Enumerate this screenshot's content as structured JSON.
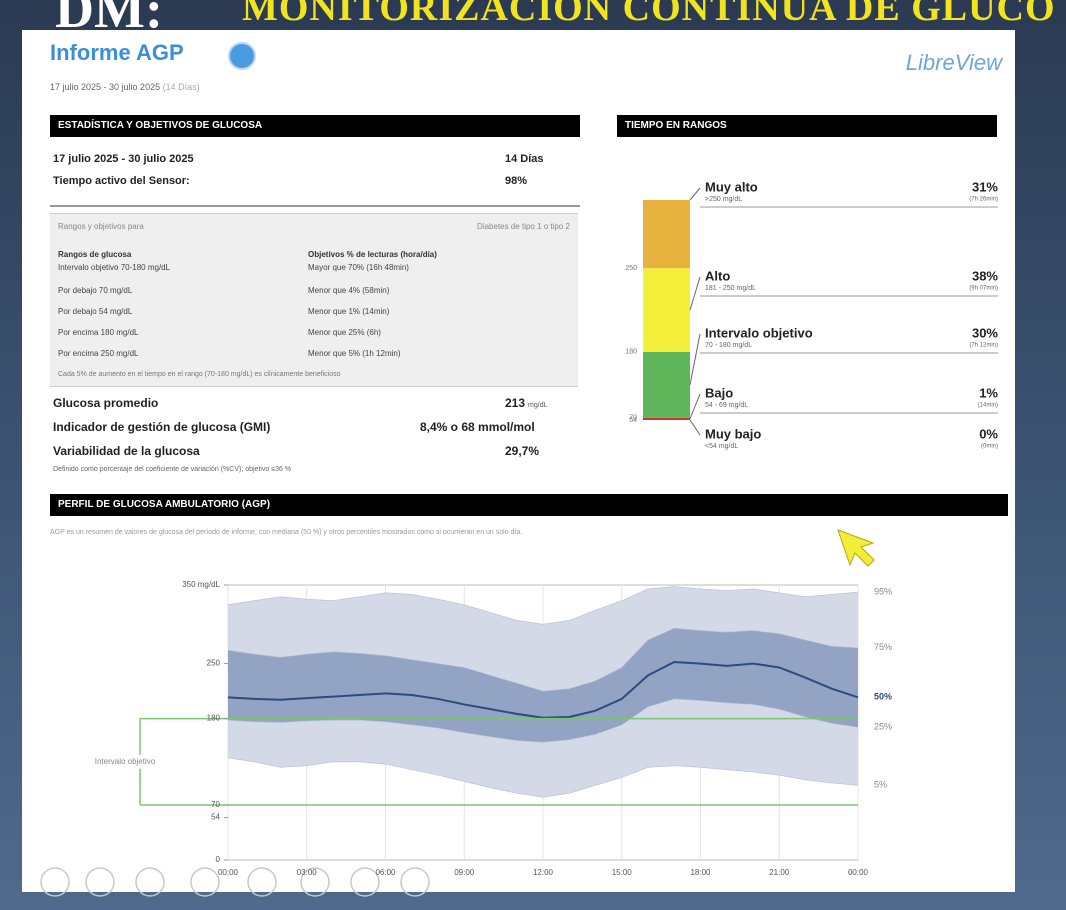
{
  "slide": {
    "title_prefix": "DM:",
    "title": "MONITORIZACIÓN CONTINUA DE GLUCO"
  },
  "header": {
    "title": "Informe AGP",
    "brand": "LibreView",
    "period": "17 julio 2025 - 30 julio 2025",
    "days": "(14 Días)"
  },
  "stats": {
    "heading": "ESTADÍSTICA Y OBJETIVOS DE GLUCOSA",
    "rows": [
      [
        "17 julio 2025 - 30 julio 2025",
        "14 Días"
      ],
      [
        "Tiempo activo del Sensor:",
        "98%"
      ]
    ],
    "targets": {
      "title": "Rangos y objetivos para",
      "population": "Diabetes de tipo 1 o tipo 2",
      "columns": [
        "Rangos de glucosa",
        "Objetivos % de lecturas (hora/día)"
      ],
      "rows": [
        [
          "Intervalo objetivo 70-180 mg/dL",
          "Mayor que 70% (16h 48min)"
        ],
        [
          "Por debajo 70 mg/dL",
          "Menor que 4% (58min)"
        ],
        [
          "Por debajo 54 mg/dL",
          "Menor que 1% (14min)"
        ],
        [
          "Por encima 180 mg/dL",
          "Menor que 25% (6h)"
        ],
        [
          "Por encima 250 mg/dL",
          "Menor que 5% (1h 12min)"
        ]
      ],
      "note": "Cada 5% de aumento en el tiempo en el rango (70-180 mg/dL) es clínicamente beneficioso"
    },
    "metrics": [
      [
        "Glucosa promedio",
        "213",
        "mg/dL"
      ],
      [
        "Indicador de gestión de glucosa (GMI)",
        "8,4% o 68 mmol/mol"
      ],
      [
        "Variabilidad de la glucosa",
        "29,7%"
      ]
    ],
    "metrics_note": "Definido como porcentaje del coeficiente de variación (%CV); objetivo ≤36 %"
  },
  "chart_data": [
    {
      "type": "stacked_bar",
      "title": "TIEMPO EN RANGOS",
      "categories": [
        "Muy alto",
        "Alto",
        "Intervalo objetivo",
        "Bajo",
        "Muy bajo"
      ],
      "ranges": [
        ">250 mg/dL",
        "181 - 250 mg/dL",
        "70 - 180 mg/dL",
        "54 - 69 mg/dL",
        "<54 mg/dL"
      ],
      "times": [
        "(7h 26min)",
        "(9h 07min)",
        "(7h 12min)",
        "(14min)",
        "(0min)"
      ],
      "values": [
        31,
        38,
        30,
        1,
        0
      ],
      "value_labels": [
        "31%",
        "38%",
        "30%",
        "1%",
        "0%"
      ],
      "colors": [
        "#e7b23e",
        "#f3ef3a",
        "#5fb65a",
        "#c0392b",
        "#7a1717"
      ],
      "boundaries": [
        250,
        180,
        70,
        54
      ]
    },
    {
      "type": "percentile_bands",
      "title": "PERFIL DE GLUCOSA AMBULATORIO (AGP)",
      "subtitle": "AGP es un resumen de valores de glucosa del período de informe, con mediana (50 %) y otros percentiles mostrados como si ocurrieran en un solo día.",
      "x": [
        0,
        1,
        2,
        3,
        4,
        5,
        6,
        7,
        8,
        9,
        10,
        11,
        12,
        13,
        14,
        15,
        16,
        17,
        18,
        19,
        20,
        21,
        22,
        23,
        24
      ],
      "xlim": [
        0,
        24
      ],
      "xticks": [
        {
          "value": 0,
          "label": "00:00"
        },
        {
          "value": 3,
          "label": "03:00"
        },
        {
          "value": 6,
          "label": "06:00"
        },
        {
          "value": 9,
          "label": "09:00"
        },
        {
          "value": 12,
          "label": "12:00"
        },
        {
          "value": 15,
          "label": "15:00"
        },
        {
          "value": 18,
          "label": "18:00"
        },
        {
          "value": 21,
          "label": "21:00"
        },
        {
          "value": 24,
          "label": "00:00"
        }
      ],
      "ylim": [
        0,
        350
      ],
      "yticks": [
        0,
        54,
        70,
        180,
        250,
        {
          "value": 350,
          "label": "350 mg/dL"
        }
      ],
      "target_range": [
        70,
        180
      ],
      "target_label": "Intervalo objetivo",
      "target_color": "#7cc46f",
      "grid": true,
      "series": [
        {
          "name": "5%",
          "color": "#d3d9e6",
          "values": [
            130,
            125,
            118,
            120,
            125,
            125,
            122,
            115,
            108,
            100,
            92,
            85,
            80,
            85,
            95,
            105,
            118,
            120,
            118,
            115,
            112,
            108,
            102,
            98,
            95
          ]
        },
        {
          "name": "25%",
          "color": "#93a3c4",
          "values": [
            178,
            176,
            175,
            177,
            178,
            178,
            176,
            172,
            168,
            162,
            157,
            152,
            150,
            153,
            160,
            172,
            195,
            205,
            203,
            200,
            198,
            192,
            182,
            174,
            169
          ]
        },
        {
          "name": "50%",
          "color": "#2d4b7f",
          "values": [
            207,
            205,
            204,
            206,
            208,
            210,
            212,
            210,
            205,
            198,
            192,
            186,
            181,
            182,
            190,
            205,
            235,
            252,
            250,
            247,
            250,
            245,
            232,
            218,
            207
          ]
        },
        {
          "name": "75%",
          "color": "#93a3c4",
          "values": [
            267,
            262,
            258,
            262,
            265,
            263,
            260,
            255,
            250,
            245,
            235,
            225,
            215,
            218,
            228,
            245,
            280,
            295,
            292,
            290,
            292,
            288,
            280,
            272,
            270
          ]
        },
        {
          "name": "95%",
          "color": "#d3d9e6",
          "values": [
            325,
            330,
            335,
            332,
            330,
            335,
            340,
            338,
            332,
            325,
            315,
            305,
            300,
            305,
            318,
            330,
            345,
            348,
            345,
            343,
            345,
            340,
            335,
            338,
            341
          ]
        }
      ]
    }
  ]
}
